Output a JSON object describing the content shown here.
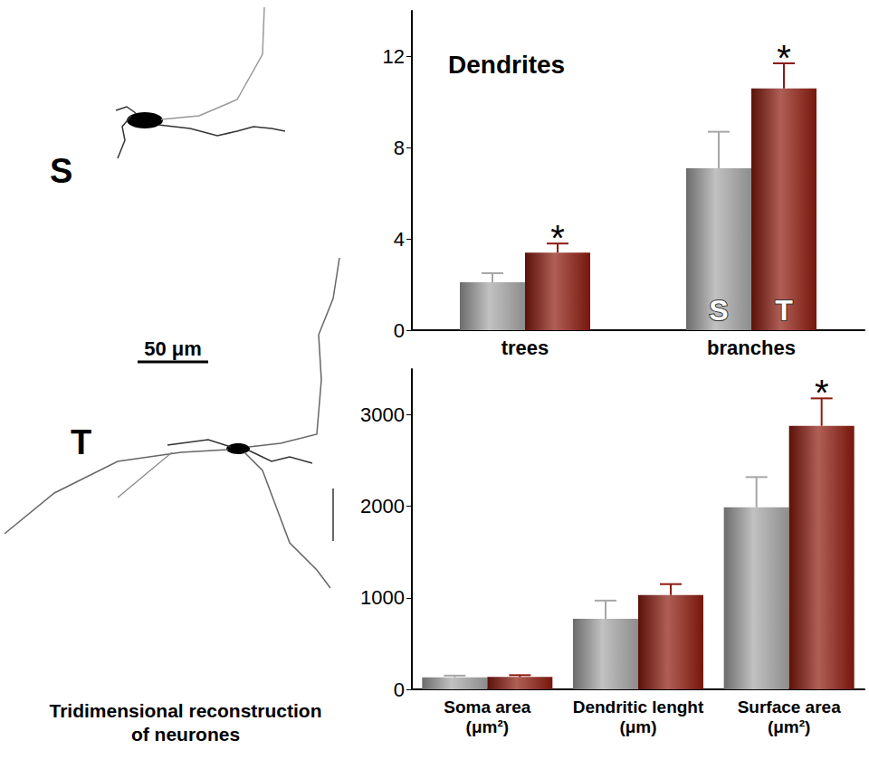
{
  "figure": {
    "labels": [
      "S",
      "T"
    ],
    "scale_bar": "50 μm",
    "caption": "Tridimensional reconstruction of neurones"
  },
  "chart_data": [
    {
      "type": "bar",
      "title": "Dendrites",
      "categories": [
        "trees",
        "branches"
      ],
      "series": [
        {
          "name": "S",
          "color": "#a6a6a6",
          "values": [
            2.1,
            7.1
          ],
          "errors": [
            0.4,
            1.6
          ]
        },
        {
          "name": "T",
          "color": "#8c1a0e",
          "values": [
            3.4,
            10.6
          ],
          "errors": [
            0.4,
            1.1
          ]
        }
      ],
      "ylim": [
        0,
        14
      ],
      "yticks": [
        0,
        4,
        8,
        12
      ],
      "grid": false,
      "annotations": [
        {
          "text": "*",
          "series": "T",
          "category": "trees"
        },
        {
          "text": "*",
          "series": "T",
          "category": "branches"
        }
      ]
    },
    {
      "type": "bar",
      "categories": [
        "Soma area (μm²)",
        "Dendritic lenght (μm)",
        "Surface area (μm²)"
      ],
      "series": [
        {
          "color": "#a6a6a6",
          "values": [
            130,
            770,
            1990
          ],
          "errors": [
            20,
            200,
            330
          ]
        },
        {
          "color": "#8c1a0e",
          "values": [
            135,
            1030,
            2880
          ],
          "errors": [
            20,
            120,
            300
          ]
        }
      ],
      "ylim": [
        0,
        3500
      ],
      "yticks": [
        0,
        1000,
        2000,
        3000
      ],
      "grid": false,
      "annotations": [
        {
          "text": "*",
          "series": 1,
          "category": "Surface area (μm²)"
        }
      ]
    }
  ]
}
